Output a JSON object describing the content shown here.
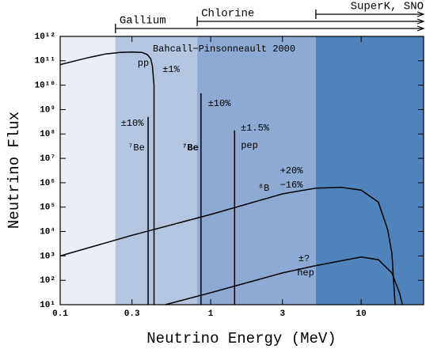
{
  "chart_data": {
    "type": "line",
    "title": "Bahcall−Pinsonneault 2000",
    "x_label": "Neutrino Energy (MeV)",
    "y_label": "Neutrino Flux",
    "log_x": true,
    "log_y": true,
    "xlim": [
      0.1,
      26
    ],
    "ylim": [
      10,
      1000000000000.0
    ],
    "xticks": [
      0.1,
      0.3,
      1,
      3,
      10
    ],
    "yticks": [
      {
        "value": 10,
        "label": "10¹"
      },
      {
        "value": 100,
        "label": "10²"
      },
      {
        "value": 1000,
        "label": "10³"
      },
      {
        "value": 10000,
        "label": "10⁴"
      },
      {
        "value": 100000,
        "label": "10⁵"
      },
      {
        "value": 1000000,
        "label": "10⁶"
      },
      {
        "value": 10000000,
        "label": "10⁷"
      },
      {
        "value": 100000000,
        "label": "10⁸"
      },
      {
        "value": 1000000000,
        "label": "10⁹"
      },
      {
        "value": 10000000000,
        "label": "10¹⁰"
      },
      {
        "value": 100000000000,
        "label": "10¹¹"
      },
      {
        "value": 1000000000000,
        "label": "10¹²"
      }
    ],
    "background_color": "#e9edf5",
    "thresholds": [
      {
        "name": "Gallium",
        "value": 0.233,
        "color": "#b3c5df"
      },
      {
        "name": "Chlorine",
        "value": 0.814,
        "color": "#8eaad2"
      },
      {
        "name": "SuperK, SNO",
        "value": 5,
        "color": "#4f83bb"
      }
    ],
    "series": [
      {
        "name": "pp",
        "uncertainty": [
          "±1%"
        ],
        "color": "#000000",
        "x": [
          0.1,
          0.15,
          0.2,
          0.25,
          0.3,
          0.35,
          0.38,
          0.4,
          0.41,
          0.42,
          0.42
        ],
        "values": [
          70000000000,
          130000000000,
          190000000000,
          220000000000,
          230000000000,
          220000000000,
          180000000000,
          120000000000,
          60000000000,
          10000000000,
          10
        ]
      },
      {
        "name": "⁸B",
        "uncertainty": [
          "+20%",
          "−16%"
        ],
        "color": "#000000",
        "x": [
          0.1,
          0.3,
          1,
          3,
          5,
          7.4,
          10,
          13,
          15,
          16,
          16.8
        ],
        "values": [
          1000,
          7000,
          50000,
          350000,
          600000,
          650000,
          500000,
          160000,
          12000,
          1300,
          10
        ]
      },
      {
        "name": "hep",
        "uncertainty": [
          "±?"
        ],
        "color": "#000000",
        "x": [
          0.5,
          1,
          3,
          5,
          10,
          13,
          16,
          18,
          18.8
        ],
        "values": [
          10,
          31,
          200,
          400,
          900,
          700,
          200,
          30,
          10
        ]
      }
    ],
    "lines": [
      {
        "name": "⁷Be",
        "uncertainty": "±10%",
        "x": 0.384,
        "value": 500000000,
        "bold": false
      },
      {
        "name": "⁷Be",
        "uncertainty": "±10%",
        "x": 0.862,
        "value": 4600000000,
        "bold": true
      },
      {
        "name": "pep",
        "uncertainty": "±1.5%",
        "x": 1.442,
        "value": 140000000,
        "bold": false
      }
    ]
  }
}
